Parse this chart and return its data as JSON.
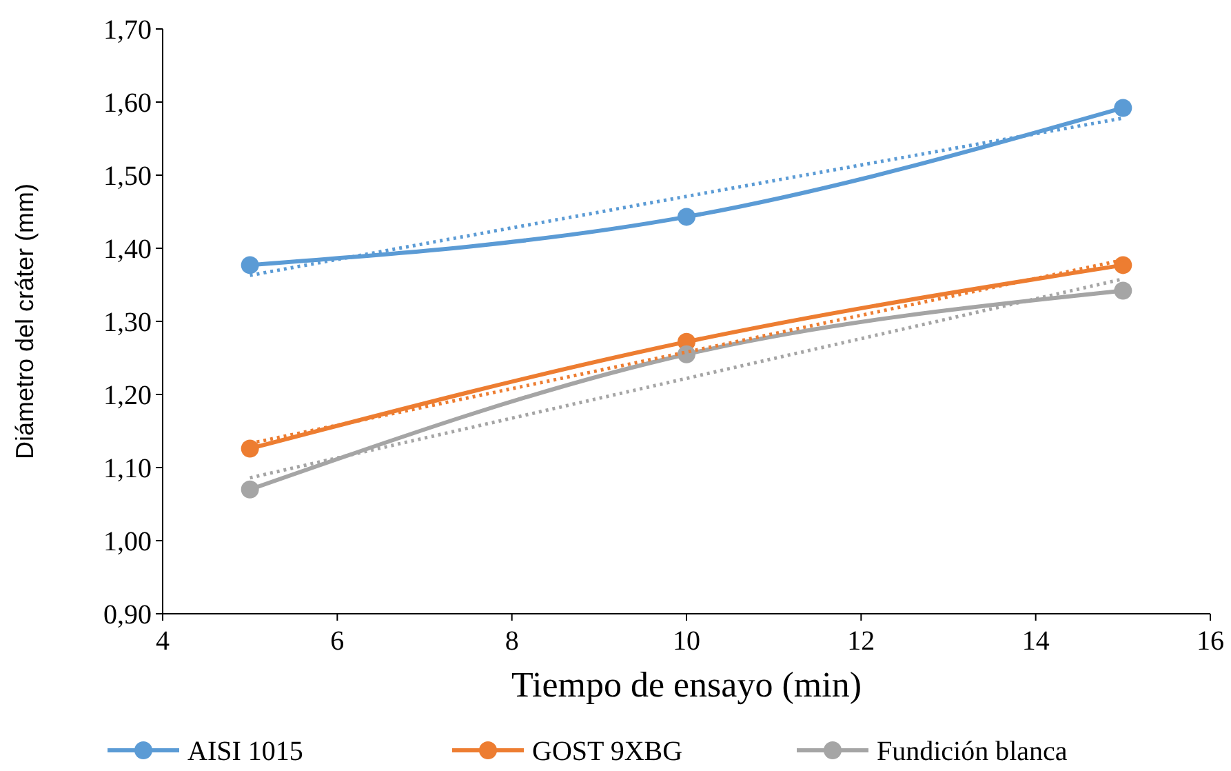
{
  "chart_data": {
    "type": "line",
    "xlabel": "Tiempo de ensayo (min)",
    "ylabel": "Diámetro del cráter (mm)",
    "xlim": [
      4,
      16
    ],
    "xticks": [
      4,
      6,
      8,
      10,
      12,
      14,
      16
    ],
    "ylim": [
      0.9,
      1.7
    ],
    "yticks": [
      {
        "value": 0.9,
        "label": "0,90"
      },
      {
        "value": 1.0,
        "label": "1,00"
      },
      {
        "value": 1.1,
        "label": "1,10"
      },
      {
        "value": 1.2,
        "label": "1,20"
      },
      {
        "value": 1.3,
        "label": "1,30"
      },
      {
        "value": 1.4,
        "label": "1,40"
      },
      {
        "value": 1.5,
        "label": "1,50"
      },
      {
        "value": 1.6,
        "label": "1,60"
      },
      {
        "value": 1.7,
        "label": "1,70"
      }
    ],
    "grid": false,
    "legend": "bottom",
    "marker": "circle",
    "line_style": "solid",
    "x": [
      5,
      10,
      15
    ],
    "series": [
      {
        "name": "AISI 1015",
        "color": "#5b9bd5",
        "values": [
          1.377,
          1.443,
          1.592
        ]
      },
      {
        "name": "GOST 9XBG",
        "color": "#ed7d31",
        "values": [
          1.126,
          1.272,
          1.377
        ]
      },
      {
        "name": "Fundición blanca",
        "color": "#a5a5a5",
        "values": [
          1.07,
          1.255,
          1.342
        ]
      },
      {
        "color": "#5b9bd5",
        "values": [
          1.363,
          1.471,
          1.578
        ],
        "marker": "none",
        "line_style": "dotted"
      },
      {
        "color": "#ed7d31",
        "values": [
          1.133,
          1.258,
          1.384
        ],
        "marker": "none",
        "line_style": "dotted"
      },
      {
        "color": "#a5a5a5",
        "values": [
          1.086,
          1.222,
          1.358
        ],
        "marker": "none",
        "line_style": "dotted"
      }
    ]
  }
}
